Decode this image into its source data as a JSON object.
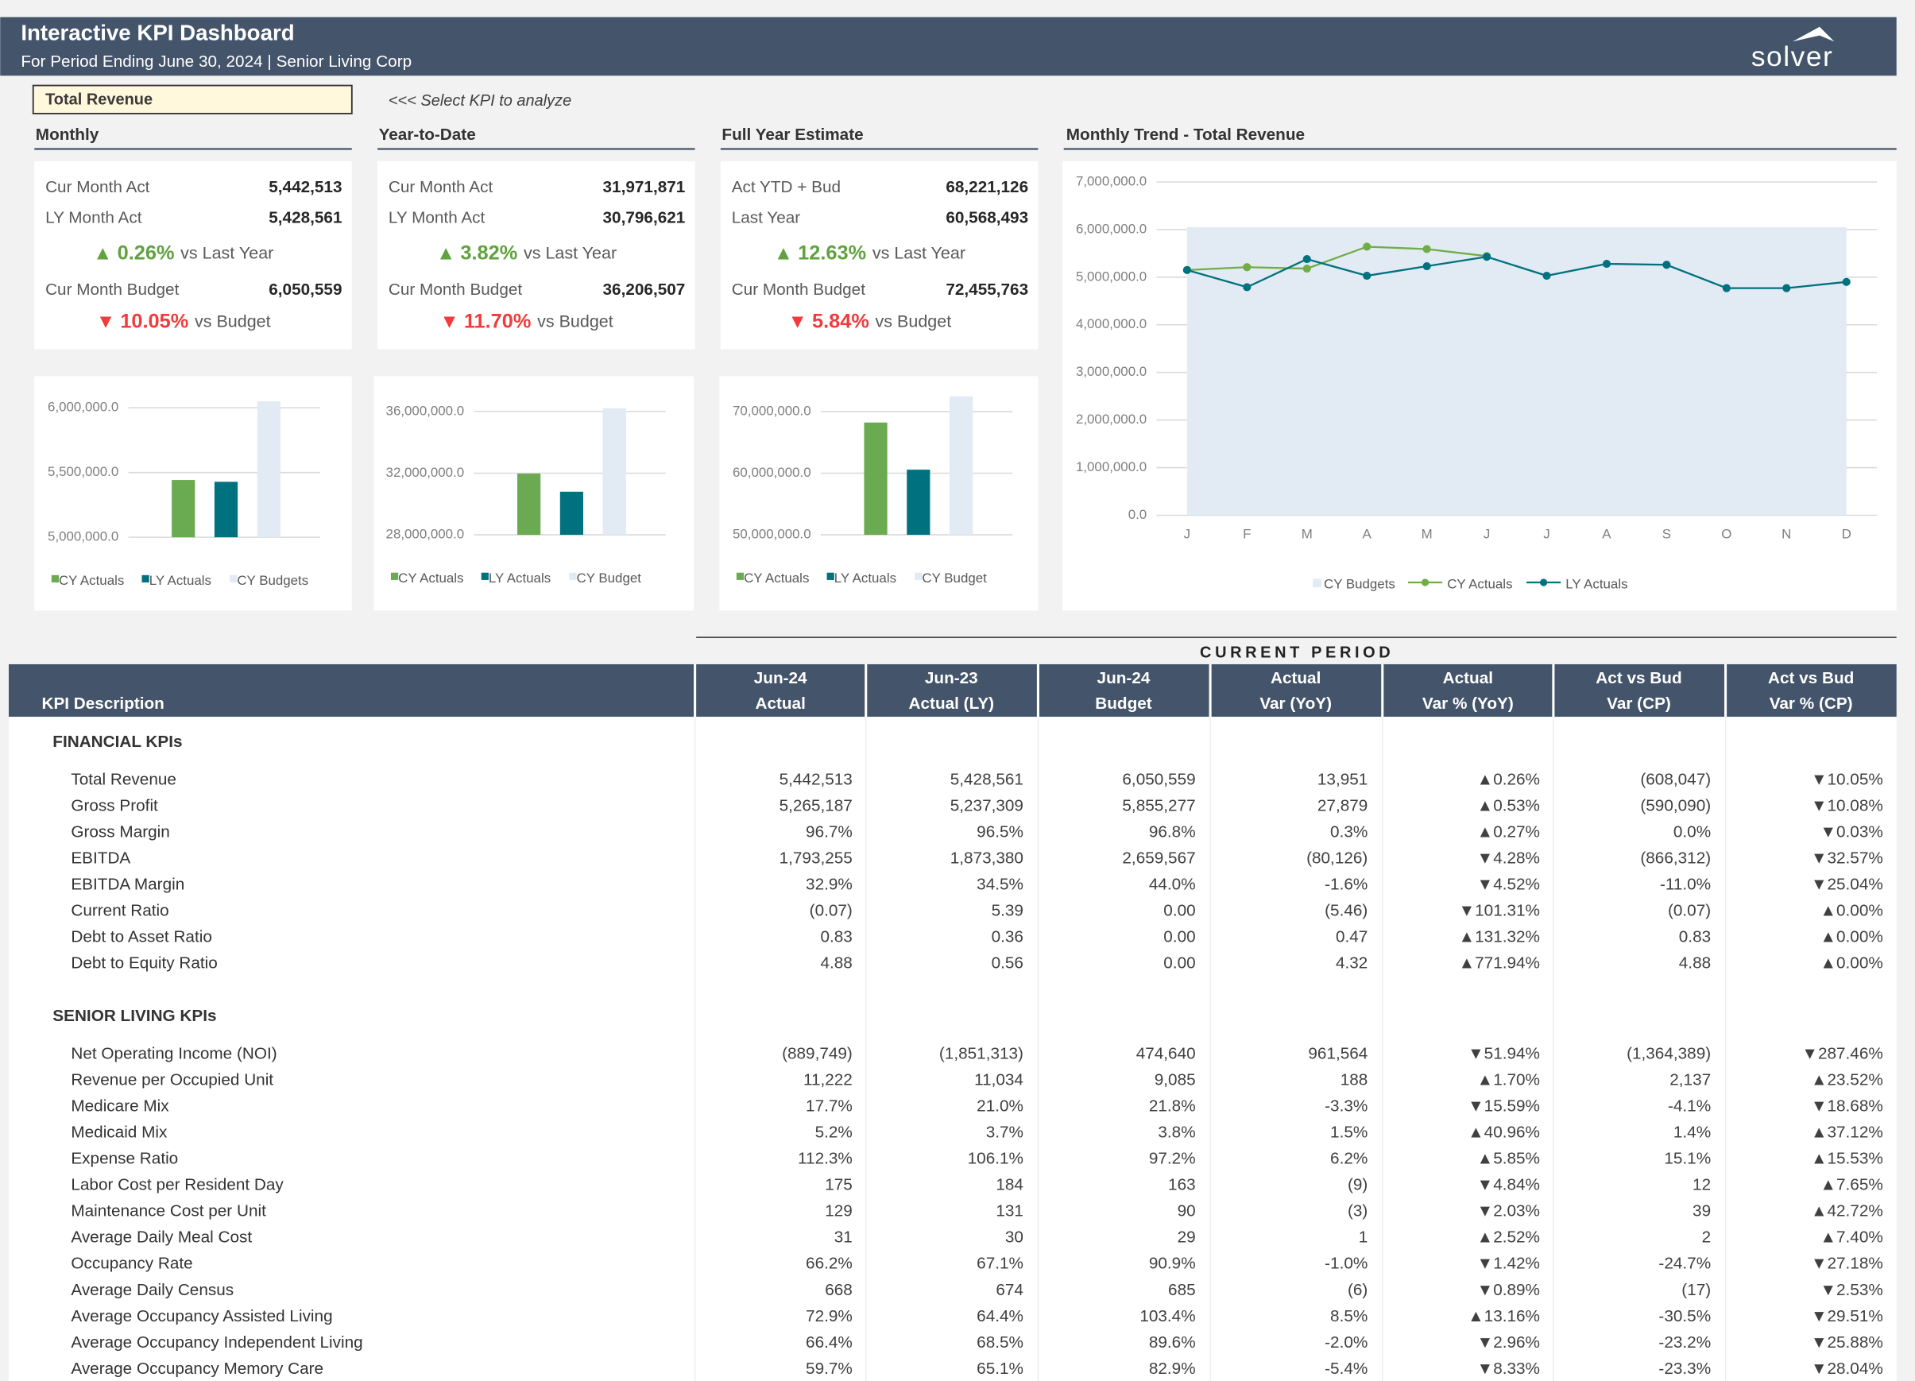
{
  "header": {
    "title": "Interactive KPI Dashboard",
    "subtitle": "For Period Ending June 30, 2024 | Senior Living Corp",
    "logo": "solver"
  },
  "selector": {
    "value": "Total Revenue",
    "hint": "<<< Select KPI to analyze"
  },
  "cards": [
    {
      "title": "Monthly",
      "rows": [
        {
          "label": "Cur Month Act",
          "value": "5,442,513"
        },
        {
          "label": "LY Month Act",
          "value": "5,428,561"
        }
      ],
      "yoy": {
        "arrow": "▲",
        "pct": "0.26%",
        "text": "vs Last Year"
      },
      "budget": {
        "label": "Cur Month Budget",
        "value": "6,050,559"
      },
      "vs_budget": {
        "arrow": "▼",
        "pct": "10.05%",
        "text": "vs Budget"
      }
    },
    {
      "title": "Year-to-Date",
      "rows": [
        {
          "label": "Cur Month Act",
          "value": "31,971,871"
        },
        {
          "label": "LY Month Act",
          "value": "30,796,621"
        }
      ],
      "yoy": {
        "arrow": "▲",
        "pct": "3.82%",
        "text": "vs Last Year"
      },
      "budget": {
        "label": "Cur Month Budget",
        "value": "36,206,507"
      },
      "vs_budget": {
        "arrow": "▼",
        "pct": "11.70%",
        "text": "vs Budget"
      }
    },
    {
      "title": "Full Year Estimate",
      "rows": [
        {
          "label": "Act YTD + Bud",
          "value": "68,221,126"
        },
        {
          "label": "Last Year",
          "value": "60,568,493"
        }
      ],
      "yoy": {
        "arrow": "▲",
        "pct": "12.63%",
        "text": "vs Last Year"
      },
      "budget": {
        "label": "Cur Month Budget",
        "value": "72,455,763"
      },
      "vs_budget": {
        "arrow": "▼",
        "pct": "5.84%",
        "text": "vs Budget"
      }
    }
  ],
  "chart_data": [
    {
      "type": "bar",
      "categories": [
        "CY Actuals",
        "LY Actuals",
        "CY Budgets"
      ],
      "values": [
        5442513,
        5428561,
        6050559
      ],
      "colors": [
        "#6aaa50",
        "#00717f",
        "#e2eaf4"
      ],
      "ylim": [
        5000000,
        6100000
      ],
      "yticks": [
        {
          "value": 5000000,
          "label": "5,000,000.0"
        },
        {
          "value": 5500000,
          "label": "5,500,000.0"
        },
        {
          "value": 6000000,
          "label": "6,000,000.0"
        }
      ],
      "grid": true
    },
    {
      "type": "bar",
      "categories": [
        "CY Actuals",
        "LY Actuals",
        "CY Budget"
      ],
      "values": [
        31971871,
        30796621,
        36206507
      ],
      "colors": [
        "#6aaa50",
        "#00717f",
        "#e2eaf4"
      ],
      "ylim": [
        28000000,
        36500000
      ],
      "yticks": [
        {
          "value": 28000000,
          "label": "28,000,000.0"
        },
        {
          "value": 32000000,
          "label": "32,000,000.0"
        },
        {
          "value": 36000000,
          "label": "36,000,000.0"
        }
      ],
      "grid": true
    },
    {
      "type": "bar",
      "categories": [
        "CY Actuals",
        "LY Actuals",
        "CY Budget"
      ],
      "values": [
        68221126,
        60568493,
        72455763
      ],
      "colors": [
        "#6aaa50",
        "#00717f",
        "#e2eaf4"
      ],
      "ylim": [
        50000000,
        73000000
      ],
      "yticks": [
        {
          "value": 50000000,
          "label": "50,000,000.0"
        },
        {
          "value": 60000000,
          "label": "60,000,000.0"
        },
        {
          "value": 70000000,
          "label": "70,000,000.0"
        }
      ],
      "grid": true
    },
    {
      "type": "line",
      "title": "Monthly Trend - Total Revenue",
      "categories": [
        "J",
        "F",
        "M",
        "A",
        "M",
        "J",
        "J",
        "A",
        "S",
        "O",
        "N",
        "D"
      ],
      "series": [
        {
          "name": "CY Budgets",
          "style": "area",
          "color": "#e2eaf4",
          "values": [
            6050000,
            6050000,
            6050000,
            6050000,
            6050000,
            6050559,
            6050000,
            6050000,
            6050000,
            6050000,
            6050000,
            6050000
          ]
        },
        {
          "name": "CY Actuals",
          "style": "line",
          "color": "#70ad47",
          "values": [
            5150000,
            5210000,
            5180000,
            5640000,
            5590000,
            5442513,
            null,
            null,
            null,
            null,
            null,
            null
          ]
        },
        {
          "name": "LY Actuals",
          "style": "line",
          "color": "#00717f",
          "values": [
            5150000,
            4790000,
            5380000,
            5030000,
            5230000,
            5428561,
            5030000,
            5280000,
            5260000,
            4770000,
            4770000,
            4900000
          ]
        }
      ],
      "ylim": [
        0,
        7000000
      ],
      "yticks": [
        {
          "value": 0,
          "label": "0.0"
        },
        {
          "value": 1000000,
          "label": "1,000,000.0"
        },
        {
          "value": 2000000,
          "label": "2,000,000.0"
        },
        {
          "value": 3000000,
          "label": "3,000,000.0"
        },
        {
          "value": 4000000,
          "label": "4,000,000.0"
        },
        {
          "value": 5000000,
          "label": "5,000,000.0"
        },
        {
          "value": 6000000,
          "label": "6,000,000.0"
        },
        {
          "value": 7000000,
          "label": "7,000,000.0"
        }
      ],
      "grid": true,
      "legend": "bottom"
    }
  ],
  "table": {
    "banner": "CURRENT PERIOD",
    "description_header": "KPI Description",
    "columns": [
      [
        "Jun-24",
        "Actual"
      ],
      [
        "Jun-23",
        "Actual (LY)"
      ],
      [
        "Jun-24",
        "Budget"
      ],
      [
        "Actual",
        "Var (YoY)"
      ],
      [
        "Actual",
        "Var % (YoY)"
      ],
      [
        "Act vs Bud",
        "Var (CP)"
      ],
      [
        "Act vs Bud",
        "Var % (CP)"
      ]
    ],
    "sections": [
      {
        "title": "FINANCIAL KPIs",
        "rows": [
          {
            "label": "Total Revenue",
            "cells": [
              "5,442,513",
              "5,428,561",
              "6,050,559",
              "13,951",
              "▲0.26%",
              "(608,047)",
              "▼10.05%"
            ],
            "red_columns": [
              6
            ]
          },
          {
            "label": "Gross Profit",
            "cells": [
              "5,265,187",
              "5,237,309",
              "5,855,277",
              "27,879",
              "▲0.53%",
              "(590,090)",
              "▼10.08%"
            ],
            "red_columns": [
              6
            ]
          },
          {
            "label": "Gross Margin",
            "cells": [
              "96.7%",
              "96.5%",
              "96.8%",
              "0.3%",
              "▲0.27%",
              "0.0%",
              "▼0.03%"
            ],
            "red_columns": [
              6
            ]
          },
          {
            "label": "EBITDA",
            "cells": [
              "1,793,255",
              "1,873,380",
              "2,659,567",
              "(80,126)",
              "▼4.28%",
              "(866,312)",
              "▼32.57%"
            ],
            "red_columns": [
              4,
              6
            ]
          },
          {
            "label": "EBITDA Margin",
            "cells": [
              "32.9%",
              "34.5%",
              "44.0%",
              "-1.6%",
              "▼4.52%",
              "-11.0%",
              "▼25.04%"
            ],
            "red_columns": [
              4,
              6
            ]
          },
          {
            "label": "Current Ratio",
            "cells": [
              "(0.07)",
              "5.39",
              "0.00",
              "(5.46)",
              "▼101.31%",
              "(0.07)",
              "▲0.00%"
            ],
            "red_columns": [
              4
            ]
          },
          {
            "label": "Debt to Asset Ratio",
            "cells": [
              "0.83",
              "0.36",
              "0.00",
              "0.47",
              "▲131.32%",
              "0.83",
              "▲0.00%"
            ],
            "red_columns": [
              4,
              6
            ]
          },
          {
            "label": "Debt to Equity Ratio",
            "cells": [
              "4.88",
              "0.56",
              "0.00",
              "4.32",
              "▲771.94%",
              "4.88",
              "▲0.00%"
            ],
            "red_columns": [
              4,
              6
            ]
          }
        ]
      },
      {
        "title": "SENIOR LIVING KPIs",
        "rows": [
          {
            "label": "Net Operating Income (NOI)",
            "cells": [
              "(889,749)",
              "(1,851,313)",
              "474,640",
              "961,564",
              "▼51.94%",
              "(1,364,389)",
              "▼287.46%"
            ],
            "red_columns": [
              4,
              6
            ]
          },
          {
            "label": "Revenue per Occupied Unit",
            "cells": [
              "11,222",
              "11,034",
              "9,085",
              "188",
              "▲1.70%",
              "2,137",
              "▲23.52%"
            ],
            "red_columns": []
          },
          {
            "label": "Medicare Mix",
            "cells": [
              "17.7%",
              "21.0%",
              "21.8%",
              "-3.3%",
              "▼15.59%",
              "-4.1%",
              "▼18.68%"
            ],
            "red_columns": [
              4,
              6
            ]
          },
          {
            "label": "Medicaid Mix",
            "cells": [
              "5.2%",
              "3.7%",
              "3.8%",
              "1.5%",
              "▲40.96%",
              "1.4%",
              "▲37.12%"
            ],
            "red_columns": []
          },
          {
            "label": "Expense Ratio",
            "cells": [
              "112.3%",
              "106.1%",
              "97.2%",
              "6.2%",
              "▲5.85%",
              "15.1%",
              "▲15.53%"
            ],
            "red_columns": []
          },
          {
            "label": "Labor Cost per Resident Day",
            "cells": [
              "175",
              "184",
              "163",
              "(9)",
              "▼4.84%",
              "12",
              "▲7.65%"
            ],
            "red_columns": [
              4
            ]
          },
          {
            "label": "Maintenance Cost per Unit",
            "cells": [
              "129",
              "131",
              "90",
              "(3)",
              "▼2.03%",
              "39",
              "▲42.72%"
            ],
            "red_columns": [
              4
            ]
          },
          {
            "label": "Average Daily Meal Cost",
            "cells": [
              "31",
              "30",
              "29",
              "1",
              "▲2.52%",
              "2",
              "▲7.40%"
            ],
            "red_columns": []
          },
          {
            "label": "Occupancy Rate",
            "cells": [
              "66.2%",
              "67.1%",
              "90.9%",
              "-1.0%",
              "▼1.42%",
              "-24.7%",
              "▼27.18%"
            ],
            "red_columns": [
              4,
              6
            ]
          },
          {
            "label": "Average Daily Census",
            "cells": [
              "668",
              "674",
              "685",
              "(6)",
              "▼0.89%",
              "(17)",
              "▼2.53%"
            ],
            "red_columns": [
              4,
              6
            ]
          },
          {
            "label": "Average Occupancy Assisted Living",
            "cells": [
              "72.9%",
              "64.4%",
              "103.4%",
              "8.5%",
              "▲13.16%",
              "-30.5%",
              "▼29.51%"
            ],
            "red_columns": [
              6
            ]
          },
          {
            "label": "Average Occupancy Independent Living",
            "cells": [
              "66.4%",
              "68.5%",
              "89.6%",
              "-2.0%",
              "▼2.96%",
              "-23.2%",
              "▼25.88%"
            ],
            "red_columns": [
              4,
              6
            ]
          },
          {
            "label": "Average Occupancy Memory Care",
            "cells": [
              "59.7%",
              "65.1%",
              "82.9%",
              "-5.4%",
              "▼8.33%",
              "-23.3%",
              "▼28.04%"
            ],
            "red_columns": [
              4,
              6
            ]
          }
        ]
      }
    ]
  }
}
